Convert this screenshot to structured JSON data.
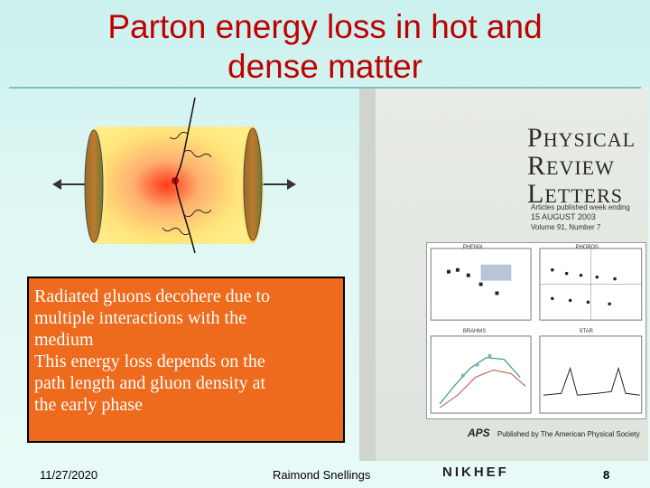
{
  "slide": {
    "title_line1": "Parton energy loss in hot and",
    "title_line2": "dense matter"
  },
  "textbox": {
    "lines": [
      "Radiated gluons decohere due to",
      "multiple interactions with the",
      "medium",
      "This energy loss depends on the",
      "path length and gluon density at",
      "the early phase"
    ]
  },
  "journal_cover": {
    "title_line1": "HYSICAL",
    "title_line1_cap": "P",
    "title_line2": "EVIEW",
    "title_line2_cap": "R",
    "title_line3": "ETTERS",
    "title_line3_cap": "L",
    "subtitle_line1": "Articles published week ending",
    "subtitle_line2": "15 AUGUST 2003",
    "subtitle_line3": "Volume 91, Number 7",
    "panel_labels": [
      "PHENIX",
      "PHOBOS",
      "BRAHMS",
      "STAR"
    ],
    "publisher": "Published by The American Physical Society",
    "publisher_logo": "APS"
  },
  "footer": {
    "date": "11/27/2020",
    "author": "Raimond Snellings",
    "page": "8",
    "logo": "NIKHEF"
  },
  "colors": {
    "title": "#c00000",
    "textbox_bg": "#ee6a1c",
    "background": "#c9f1ee"
  }
}
